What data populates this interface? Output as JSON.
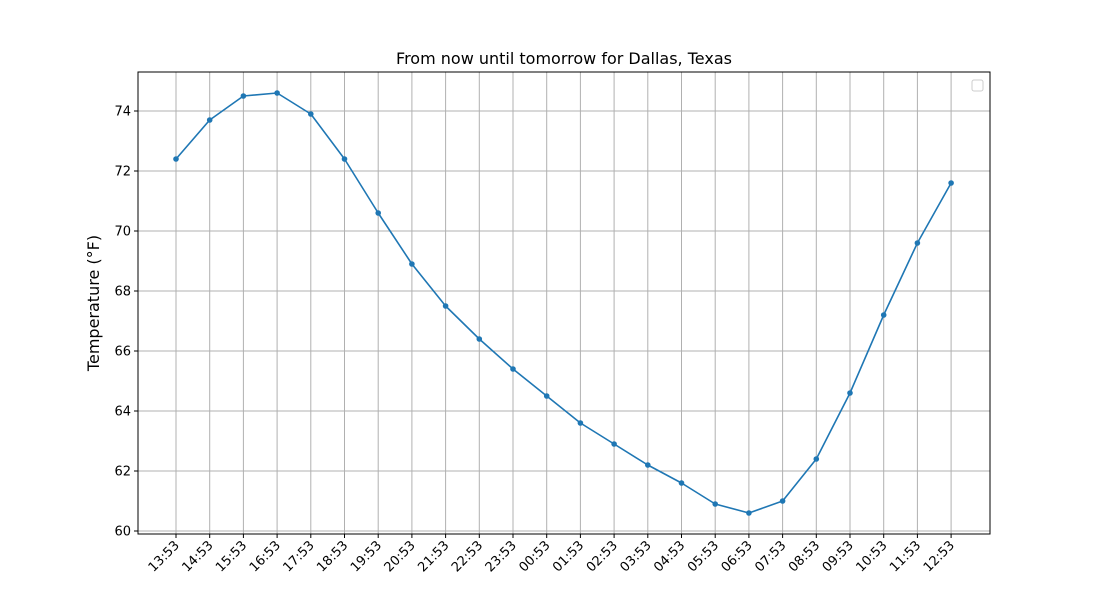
{
  "chart_data": {
    "type": "line",
    "title": "From now until tomorrow for Dallas, Texas",
    "xlabel": "",
    "ylabel": "Temperature (°F)",
    "categories": [
      "13:53",
      "14:53",
      "15:53",
      "16:53",
      "17:53",
      "18:53",
      "19:53",
      "20:53",
      "21:53",
      "22:53",
      "23:53",
      "00:53",
      "01:53",
      "02:53",
      "03:53",
      "04:53",
      "05:53",
      "06:53",
      "07:53",
      "08:53",
      "09:53",
      "10:53",
      "11:53",
      "12:53"
    ],
    "series": [
      {
        "values": [
          72.4,
          73.7,
          74.5,
          74.6,
          73.9,
          72.4,
          70.6,
          68.9,
          67.5,
          66.4,
          65.4,
          64.5,
          63.6,
          62.9,
          62.2,
          61.6,
          60.9,
          60.6,
          61.0,
          62.4,
          64.6,
          67.2,
          69.6,
          71.6
        ],
        "color": "#1f77b4",
        "marker": "circle"
      }
    ],
    "ylim": [
      59.9,
      75.3
    ],
    "yticks": [
      60,
      62,
      64,
      66,
      68,
      70,
      72,
      74
    ],
    "grid": true,
    "legend": {
      "position": "upper-right",
      "entries": []
    }
  }
}
